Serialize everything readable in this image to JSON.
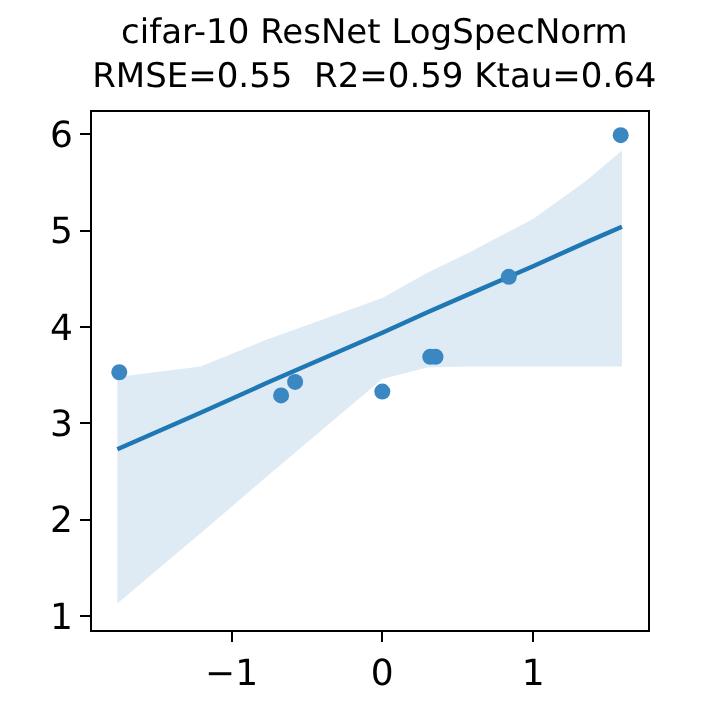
{
  "chart_data": {
    "type": "scatter",
    "title": "cifar-10 ResNet LogSpecNorm",
    "subtitle": "RMSE=0.55  R2=0.59 Ktau=0.64",
    "series": [
      {
        "color": "#3a87c2",
        "x": [
          -1.744,
          -0.671,
          -0.578,
          0.0,
          0.318,
          0.353,
          0.839,
          1.581
        ],
        "values": [
          3.53,
          3.29,
          3.43,
          3.33,
          3.69,
          3.69,
          4.52,
          5.99
        ]
      },
      {
        "type": "line",
        "marker": "none",
        "color": "#1f77b4",
        "x": [
          -1.757,
          -1.205,
          -0.764,
          0,
          0.296,
          0.56,
          1.0,
          1.355,
          1.589
        ],
        "values": [
          2.73,
          3.11,
          3.42,
          3.94,
          4.15,
          4.33,
          4.63,
          4.88,
          5.04
        ],
        "lower": [
          1.13,
          1.86,
          2.45,
          3.46,
          3.58,
          3.59,
          3.59,
          3.59,
          3.59
        ],
        "upper": [
          3.48,
          3.59,
          3.87,
          4.3,
          4.56,
          4.76,
          5.12,
          5.52,
          5.83
        ]
      }
    ],
    "xlim": [
      -1.925,
      1.762
    ],
    "xticks": [
      {
        "value": -1,
        "label": "−1"
      },
      0,
      1
    ],
    "ylim": [
      0.856,
      6.23
    ],
    "yticks": [
      1,
      2,
      3,
      4,
      5,
      6
    ],
    "grid": false,
    "marker": "circle",
    "line_style": "solid"
  }
}
